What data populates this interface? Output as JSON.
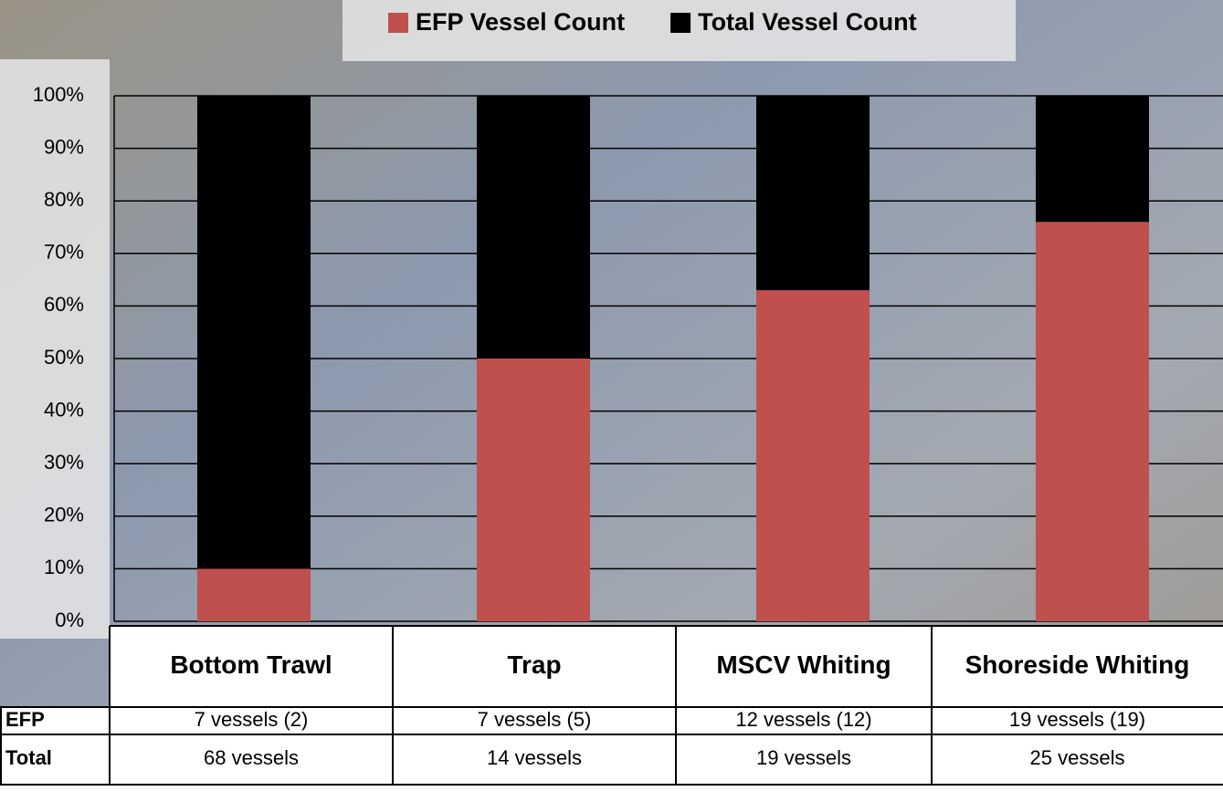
{
  "chart_data": {
    "type": "stacked_bar",
    "categories": [
      "Bottom Trawl",
      "Trap",
      "MSCV Whiting",
      "Shoreside Whiting"
    ],
    "series": [
      {
        "name": "EFP Vessel Count",
        "color": "#c0504d",
        "values": [
          10,
          50,
          63,
          76
        ]
      },
      {
        "name": "Total Vessel Count",
        "color": "#000000",
        "values": [
          90,
          50,
          37,
          24
        ]
      }
    ],
    "ylim": [
      0,
      100
    ],
    "yticks": [
      {
        "value": 0,
        "label": "0%"
      },
      {
        "value": 10,
        "label": "10%"
      },
      {
        "value": 20,
        "label": "20%"
      },
      {
        "value": 30,
        "label": "30%"
      },
      {
        "value": 40,
        "label": "40%"
      },
      {
        "value": 50,
        "label": "50%"
      },
      {
        "value": 60,
        "label": "60%"
      },
      {
        "value": 70,
        "label": "70%"
      },
      {
        "value": 80,
        "label": "80%"
      },
      {
        "value": 90,
        "label": "90%"
      },
      {
        "value": 100,
        "label": "100%"
      }
    ],
    "grid": true,
    "legend": "top"
  },
  "table": {
    "row_labels": [
      "EFP",
      "Total"
    ],
    "rows": [
      [
        "7 vessels (2)",
        "7 vessels (5)",
        "12 vessels (12)",
        "19 vessels (19)"
      ],
      [
        "68 vessels",
        "14 vessels",
        "19 vessels",
        "25 vessels"
      ]
    ]
  }
}
